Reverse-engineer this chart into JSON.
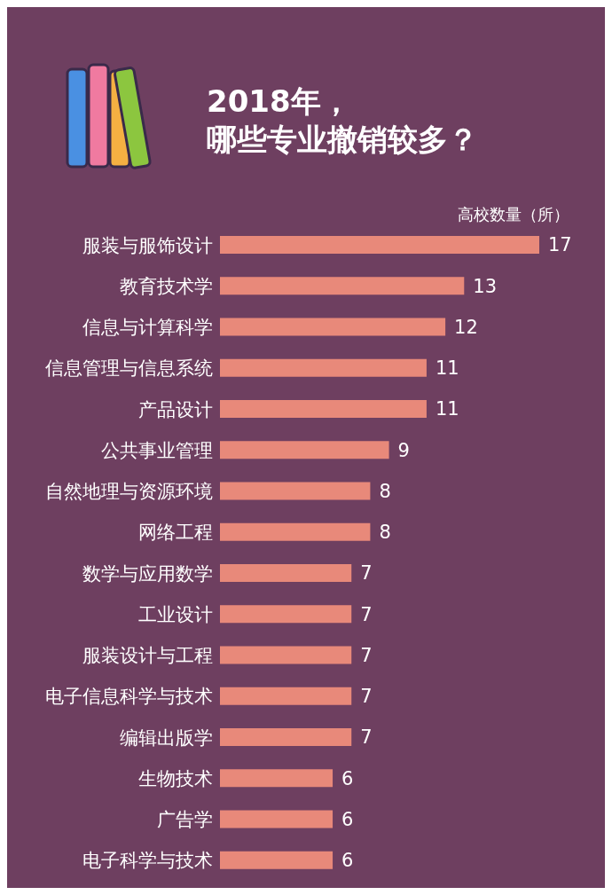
{
  "chart_data": {
    "type": "bar",
    "orientation": "horizontal",
    "title": "2018年，",
    "subtitle": "哪些专业撤销较多？",
    "xlabel": "高校数量（所）",
    "categories": [
      "服装与服饰设计",
      "教育技术学",
      "信息与计算科学",
      "信息管理与信息系统",
      "产品设计",
      "公共事业管理",
      "自然地理与资源环境",
      "网络工程",
      "数学与应用数学",
      "工业设计",
      "服装设计与工程",
      "电子信息科学与技术",
      "编辑出版学",
      "生物技术",
      "广告学",
      "电子科学与技术"
    ],
    "values": [
      17,
      13,
      12,
      11,
      11,
      9,
      8,
      8,
      7,
      7,
      7,
      7,
      7,
      6,
      6,
      6
    ],
    "color": "#e8897a",
    "data_labels": true
  }
}
